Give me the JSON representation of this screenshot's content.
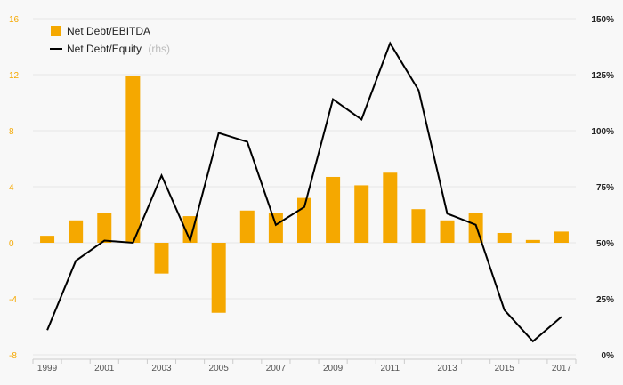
{
  "chart_data": {
    "type": "bar",
    "x": [
      1999,
      2000,
      2001,
      2002,
      2003,
      2004,
      2005,
      2006,
      2007,
      2008,
      2009,
      2010,
      2011,
      2012,
      2013,
      2014,
      2015,
      2016,
      2017
    ],
    "x_tick_labels": [
      "1999",
      "2001",
      "2003",
      "2005",
      "2007",
      "2009",
      "2011",
      "2013",
      "2015",
      "2017"
    ],
    "series": [
      {
        "name": "Net Debt/EBITDA",
        "type": "bar",
        "axis": "left",
        "color": "#f5a800",
        "values": [
          0.5,
          1.6,
          2.1,
          11.9,
          -2.2,
          1.9,
          -5.0,
          2.3,
          2.1,
          3.2,
          4.7,
          4.1,
          5.0,
          2.4,
          1.6,
          2.1,
          0.7,
          0.2,
          0.8
        ]
      },
      {
        "name": "Net Debt/Equity",
        "name_suffix": "(rhs)",
        "type": "line",
        "axis": "right",
        "color": "#000000",
        "values": [
          11,
          42,
          51,
          50,
          80,
          51,
          99,
          95,
          58,
          66,
          114,
          105,
          139,
          118,
          63,
          58,
          20,
          6,
          17
        ]
      }
    ],
    "left_axis": {
      "min": -8,
      "max": 16,
      "ticks": [
        "16",
        "12",
        "8",
        "4",
        "0",
        "-4",
        "-8"
      ]
    },
    "right_axis": {
      "min": 0,
      "max": 150,
      "ticks": [
        "150%",
        "125%",
        "100%",
        "75%",
        "50%",
        "25%",
        "0%"
      ]
    },
    "grid": true,
    "legend_position": "top-left"
  }
}
